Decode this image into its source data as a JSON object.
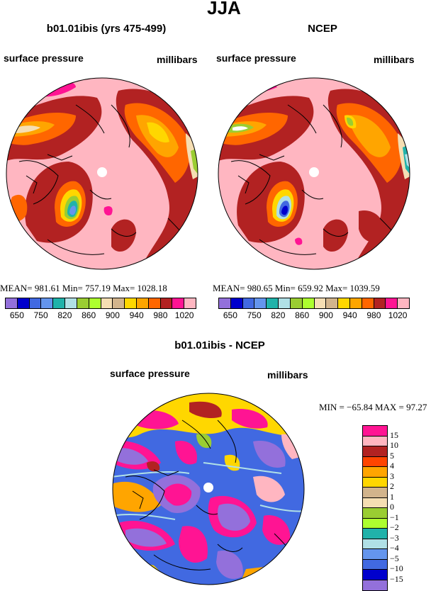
{
  "title": "JJA",
  "panels": [
    {
      "title": "b01.01ibis (yrs 475-499)",
      "left_label": "surface pressure",
      "right_label": "millibars",
      "stats": "MEAN=  981.61    Min=  757.19    Max=  1028.18"
    },
    {
      "title": "NCEP",
      "left_label": "surface pressure",
      "right_label": "millibars",
      "stats": "MEAN=  980.65    Min=  659.92    Max=  1039.59"
    },
    {
      "title": "b01.01ibis - NCEP",
      "left_label": "surface pressure",
      "right_label": "millibars",
      "stats": "MIN = −65.84  MAX =   97.27"
    }
  ],
  "colors": {
    "top_scale": [
      "#9370db",
      "#0000cd",
      "#4169e1",
      "#6495ed",
      "#20b2aa",
      "#b0e0e6",
      "#9acd32",
      "#adff2f",
      "#f5deb3",
      "#d2b48c",
      "#ffd700",
      "#ffa500",
      "#ff6600",
      "#b22222",
      "#ff1493",
      "#ffb6c1"
    ],
    "diff_scale": [
      "#ff1493",
      "#ffb6c1",
      "#b22222",
      "#ff4500",
      "#ffa500",
      "#ffd700",
      "#d2b48c",
      "#f5deb3",
      "#9acd32",
      "#adff2f",
      "#20b2aa",
      "#b0e0e6",
      "#6495ed",
      "#4169e1",
      "#0000cd",
      "#9370db"
    ]
  },
  "top_colorbar_ticks": [
    "650",
    "750",
    "820",
    "860",
    "900",
    "940",
    "980",
    "1020"
  ],
  "diff_colorbar_ticks": [
    "15",
    "10",
    "5",
    "4",
    "3",
    "2",
    "1",
    "0",
    "−1",
    "−2",
    "−3",
    "−4",
    "−5",
    "−10",
    "−15"
  ]
}
